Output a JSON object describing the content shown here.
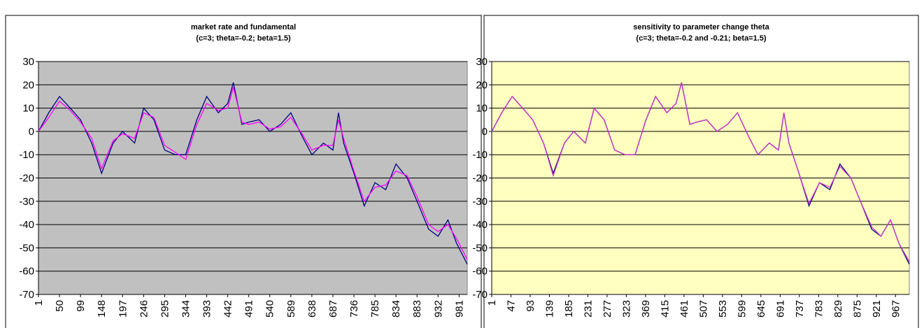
{
  "chart_data": [
    {
      "type": "line",
      "title": "market rate and fundamental",
      "subtitle": "(c=3; theta=-0.2; beta=1.5)",
      "x": [
        1,
        25,
        50,
        75,
        99,
        125,
        148,
        175,
        197,
        225,
        246,
        270,
        295,
        320,
        344,
        370,
        393,
        420,
        442,
        455,
        475,
        491,
        515,
        540,
        565,
        589,
        615,
        638,
        665,
        687,
        700,
        712,
        736,
        760,
        785,
        810,
        834,
        860,
        883,
        910,
        932,
        955,
        975,
        1000
      ],
      "series": [
        {
          "color": "#000080",
          "values": [
            0,
            8,
            15,
            10,
            5,
            -5,
            -18,
            -5,
            0,
            -5,
            10,
            5,
            -8,
            -10,
            -10,
            5,
            15,
            8,
            12,
            21,
            3,
            4,
            5,
            0,
            3,
            8,
            -2,
            -10,
            -5,
            -8,
            8,
            -5,
            -18,
            -32,
            -22,
            -25,
            -14,
            -20,
            -30,
            -42,
            -45,
            -38,
            -48,
            -57
          ]
        },
        {
          "color": "#ff00ff",
          "values": [
            0,
            6,
            13,
            9,
            4,
            -3,
            -16,
            -4,
            -1,
            -3,
            8,
            6,
            -6,
            -9,
            -12,
            3,
            12,
            9,
            10,
            19,
            4,
            3,
            4,
            1,
            2,
            6,
            -1,
            -8,
            -6,
            -6,
            5,
            -3,
            -17,
            -30,
            -24,
            -23,
            -17,
            -19,
            -28,
            -40,
            -43,
            -40,
            -46,
            -55
          ]
        }
      ],
      "xlim": [
        1,
        1000
      ],
      "xticks": [
        1,
        50,
        99,
        148,
        197,
        246,
        295,
        344,
        393,
        442,
        491,
        540,
        589,
        638,
        687,
        736,
        785,
        834,
        883,
        932,
        981
      ],
      "ylim": [
        -70,
        30
      ],
      "yticks": [
        -70,
        -60,
        -50,
        -40,
        -30,
        -20,
        -10,
        0,
        10,
        20,
        30
      ],
      "grid": true,
      "background": "#c0c0c0"
    },
    {
      "type": "line",
      "title": "sensitivity to parameter change theta",
      "subtitle": "(c=3; theta=-0.2 and -0.21; beta=1.5)",
      "x": [
        1,
        25,
        50,
        75,
        99,
        125,
        148,
        175,
        197,
        225,
        246,
        270,
        295,
        320,
        344,
        370,
        393,
        420,
        442,
        455,
        475,
        491,
        515,
        540,
        565,
        589,
        615,
        638,
        665,
        687,
        700,
        712,
        736,
        760,
        785,
        810,
        834,
        860,
        883,
        910,
        932,
        955,
        975,
        1000
      ],
      "series": [
        {
          "color": "#000080",
          "values": [
            0,
            8,
            15,
            10,
            5,
            -5,
            -18,
            -5,
            0,
            -5,
            10,
            5,
            -8,
            -10,
            -10,
            5,
            15,
            8,
            12,
            21,
            3,
            4,
            5,
            0,
            3,
            8,
            -2,
            -10,
            -5,
            -8,
            8,
            -5,
            -18,
            -32,
            -22,
            -25,
            -14,
            -20,
            -30,
            -42,
            -45,
            -38,
            -48,
            -57
          ]
        },
        {
          "color": "#cc33cc",
          "values": [
            0,
            8,
            15,
            10,
            5,
            -5,
            -19,
            -5,
            0,
            -5,
            10,
            5,
            -8,
            -10,
            -10,
            5,
            15,
            8,
            12,
            21,
            3,
            4,
            5,
            0,
            3,
            8,
            -2,
            -10,
            -5,
            -8,
            8,
            -5,
            -18,
            -31,
            -22,
            -24,
            -15,
            -20,
            -30,
            -41,
            -45,
            -38,
            -48,
            -56
          ]
        }
      ],
      "xlim": [
        1,
        1000
      ],
      "xticks": [
        1,
        47,
        93,
        139,
        185,
        231,
        277,
        323,
        369,
        415,
        461,
        507,
        553,
        599,
        645,
        691,
        737,
        783,
        829,
        875,
        921,
        967
      ],
      "ylim": [
        -70,
        30
      ],
      "yticks": [
        -70,
        -60,
        -50,
        -40,
        -30,
        -20,
        -10,
        0,
        10,
        20,
        30
      ],
      "grid": true,
      "background": "#ffffc0"
    }
  ]
}
